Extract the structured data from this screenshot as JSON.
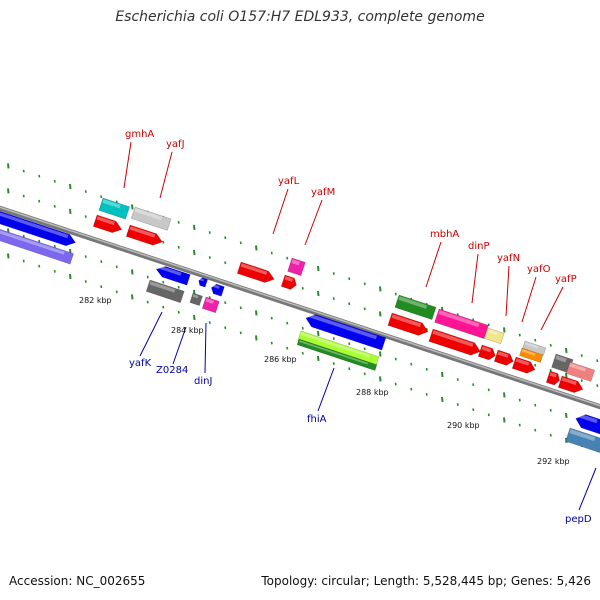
{
  "title": "Escherichia coli O157:H7 EDL933, complete genome",
  "footer": {
    "accession": "Accession: NC_002655",
    "summary": "Topology: circular; Length: 5,528,445 bp; Genes: 5,426"
  },
  "colors": {
    "forward_label": "#cc0000",
    "reverse_label": "#0000aa",
    "backbone": "#888888",
    "tick_marks": "#2a8a2a",
    "tick_text": "#111111"
  },
  "scale": {
    "unit": "kbp",
    "tick_labels": [
      "282 kbp",
      "284 kbp",
      "286 kbp",
      "288 kbp",
      "290 kbp",
      "292 kbp"
    ]
  },
  "genes": {
    "forward_labels": [
      "gmhA",
      "yafJ",
      "yafL",
      "yafM",
      "mbhA",
      "dinP",
      "yafN",
      "yafO",
      "yafP"
    ],
    "reverse_labels": [
      "yafK",
      "Z0284",
      "dinJ",
      "fhiA",
      "pepD"
    ]
  },
  "feature_colors": [
    "#0000ee",
    "#7b68ee",
    "#00c0c0",
    "#c8c8c8",
    "#ee0000",
    "#ee22aa",
    "#666666",
    "#aaff33",
    "#228b22",
    "#ff1493",
    "#f0e68c",
    "#ff8c00",
    "#f08080",
    "#4682b4"
  ]
}
